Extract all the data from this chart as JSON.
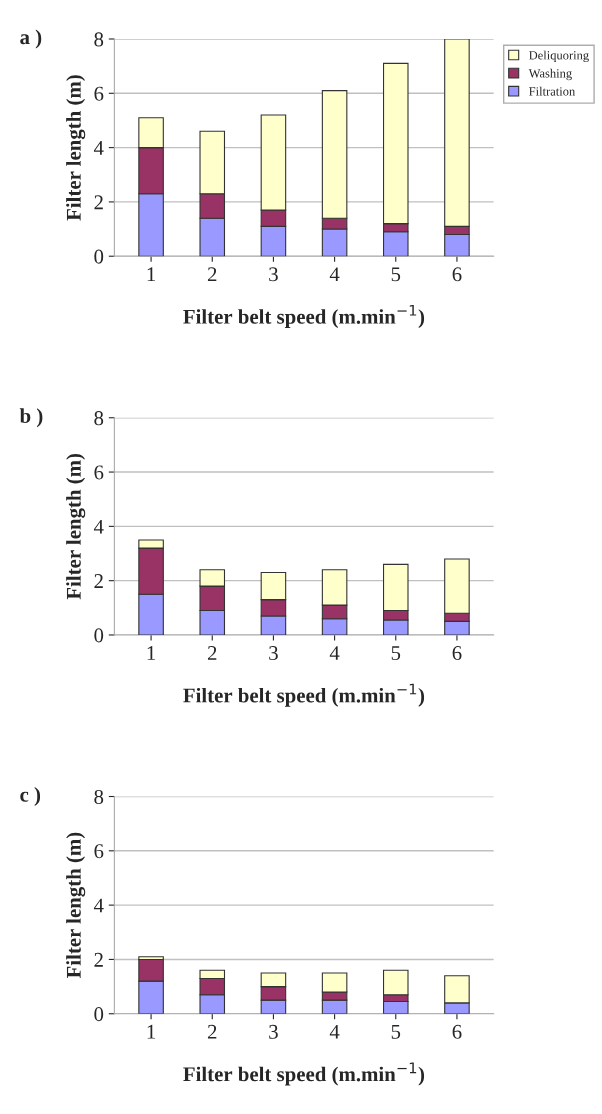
{
  "chart_data": [
    {
      "type": "bar",
      "title": "a )",
      "xlabel": "Filter belt speed (m.min$^{−1}$)",
      "ylabel": "Filter length (m)",
      "categories": [
        "1",
        "2",
        "3",
        "4",
        "5",
        "6"
      ],
      "stacked": true,
      "ylim": [
        0,
        8
      ],
      "yticks": [
        0,
        2,
        4,
        6,
        8
      ],
      "grid": "y",
      "legend": "top right",
      "series": [
        {
          "name": "Filtration",
          "color": "#9999ff",
          "values": [
            2.3,
            1.4,
            1.1,
            1.0,
            0.9,
            0.8
          ]
        },
        {
          "name": "Washing",
          "color": "#993366",
          "values": [
            1.7,
            0.9,
            0.6,
            0.4,
            0.3,
            0.3
          ]
        },
        {
          "name": "Deliquoring",
          "color": "#ffffcc",
          "values": [
            1.1,
            2.3,
            3.5,
            4.7,
            5.9,
            6.9
          ]
        }
      ]
    },
    {
      "type": "bar",
      "title": "b )",
      "xlabel": "Filter belt speed (m.min$^{−1}$)",
      "ylabel": "Filter length (m)",
      "categories": [
        "1",
        "2",
        "3",
        "4",
        "5",
        "6"
      ],
      "stacked": true,
      "ylim": [
        0,
        8
      ],
      "yticks": [
        0,
        2,
        4,
        6,
        8
      ],
      "grid": "y",
      "series": [
        {
          "color": "#9999ff",
          "values": [
            1.5,
            0.9,
            0.7,
            0.6,
            0.55,
            0.5
          ]
        },
        {
          "color": "#993366",
          "values": [
            1.7,
            0.9,
            0.6,
            0.5,
            0.35,
            0.3
          ]
        },
        {
          "color": "#ffffcc",
          "values": [
            0.3,
            0.6,
            1.0,
            1.3,
            1.7,
            2.0
          ]
        }
      ]
    },
    {
      "type": "bar",
      "title": "c )",
      "xlabel": "Filter belt speed (m.min$^{−1}$)",
      "ylabel": "Filter length (m)",
      "categories": [
        "1",
        "2",
        "3",
        "4",
        "5",
        "6"
      ],
      "stacked": true,
      "ylim": [
        0,
        8
      ],
      "yticks": [
        0,
        2,
        4,
        6,
        8
      ],
      "grid": "y",
      "series": [
        {
          "color": "#9999ff",
          "values": [
            1.2,
            0.7,
            0.5,
            0.5,
            0.45,
            0.4
          ]
        },
        {
          "color": "#993366",
          "values": [
            0.8,
            0.6,
            0.5,
            0.3,
            0.25,
            null
          ]
        },
        {
          "color": "#ffffcc",
          "values": [
            0.1,
            0.3,
            0.5,
            0.7,
            0.9,
            1.0
          ]
        }
      ]
    }
  ]
}
